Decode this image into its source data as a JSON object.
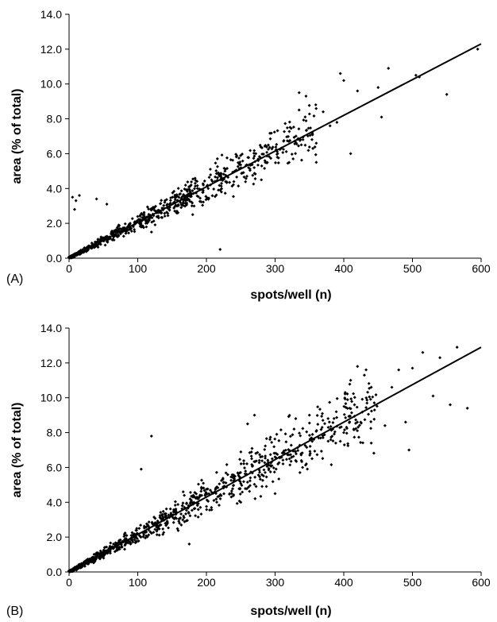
{
  "chart_data": [
    {
      "panel_label": "(A)",
      "type": "scatter",
      "xlabel": "spots/well (n)",
      "ylabel": "area (% of total)",
      "xlim": [
        0,
        600
      ],
      "ylim": [
        0,
        14
      ],
      "xticks": [
        "0",
        "100",
        "200",
        "300",
        "400",
        "500",
        "600"
      ],
      "yticks": [
        "0.0",
        "2.0",
        "4.0",
        "6.0",
        "8.0",
        "10.0",
        "12.0",
        "14.0"
      ],
      "grid": false,
      "trendline": {
        "x": [
          0,
          600
        ],
        "y": [
          0,
          12.3
        ]
      },
      "outliers": [
        {
          "x": 5,
          "y": 3.5
        },
        {
          "x": 10,
          "y": 3.3
        },
        {
          "x": 15,
          "y": 3.6
        },
        {
          "x": 8,
          "y": 2.8
        },
        {
          "x": 40,
          "y": 3.4
        },
        {
          "x": 55,
          "y": 3.1
        },
        {
          "x": 220,
          "y": 0.5
        },
        {
          "x": 410,
          "y": 6.0
        },
        {
          "x": 550,
          "y": 9.4
        },
        {
          "x": 595,
          "y": 12.0
        },
        {
          "x": 465,
          "y": 10.9
        },
        {
          "x": 505,
          "y": 10.5
        },
        {
          "x": 510,
          "y": 10.4
        },
        {
          "x": 395,
          "y": 10.6
        },
        {
          "x": 400,
          "y": 10.2
        },
        {
          "x": 335,
          "y": 9.5
        },
        {
          "x": 345,
          "y": 9.3
        },
        {
          "x": 420,
          "y": 9.6
        },
        {
          "x": 450,
          "y": 9.8
        },
        {
          "x": 455,
          "y": 8.1
        },
        {
          "x": 380,
          "y": 7.6
        },
        {
          "x": 390,
          "y": 7.8
        },
        {
          "x": 370,
          "y": 8.4
        },
        {
          "x": 355,
          "y": 6.3
        },
        {
          "x": 360,
          "y": 5.5
        },
        {
          "x": 280,
          "y": 4.5
        },
        {
          "x": 120,
          "y": 1.5
        },
        {
          "x": 180,
          "y": 2.5
        }
      ],
      "cluster": {
        "n": 850,
        "x_range": [
          0,
          360
        ],
        "spread": 0.13,
        "seed": 11
      }
    },
    {
      "panel_label": "(B)",
      "type": "scatter",
      "xlabel": "spots/well (n)",
      "ylabel": "area (% of total)",
      "xlim": [
        0,
        600
      ],
      "ylim": [
        0,
        14
      ],
      "xticks": [
        "0",
        "100",
        "200",
        "300",
        "400",
        "500",
        "600"
      ],
      "yticks": [
        "0.0",
        "2.0",
        "4.0",
        "6.0",
        "8.0",
        "10.0",
        "12.0",
        "14.0"
      ],
      "grid": false,
      "trendline": {
        "x": [
          0,
          600
        ],
        "y": [
          0,
          12.9
        ]
      },
      "outliers": [
        {
          "x": 120,
          "y": 7.8
        },
        {
          "x": 105,
          "y": 5.9
        },
        {
          "x": 175,
          "y": 1.6
        },
        {
          "x": 565,
          "y": 12.9
        },
        {
          "x": 515,
          "y": 12.6
        },
        {
          "x": 580,
          "y": 9.4
        },
        {
          "x": 555,
          "y": 9.6
        },
        {
          "x": 495,
          "y": 7.0
        },
        {
          "x": 490,
          "y": 8.6
        },
        {
          "x": 540,
          "y": 12.3
        },
        {
          "x": 530,
          "y": 10.1
        },
        {
          "x": 500,
          "y": 11.7
        },
        {
          "x": 480,
          "y": 11.6
        },
        {
          "x": 470,
          "y": 10.6
        },
        {
          "x": 440,
          "y": 7.4
        },
        {
          "x": 460,
          "y": 8.4
        },
        {
          "x": 420,
          "y": 11.8
        },
        {
          "x": 430,
          "y": 11.3
        },
        {
          "x": 410,
          "y": 11.0
        },
        {
          "x": 395,
          "y": 7.5
        },
        {
          "x": 400,
          "y": 8.0
        },
        {
          "x": 350,
          "y": 9.0
        },
        {
          "x": 340,
          "y": 6.0
        },
        {
          "x": 330,
          "y": 8.8
        },
        {
          "x": 270,
          "y": 9.0
        },
        {
          "x": 260,
          "y": 8.5
        },
        {
          "x": 300,
          "y": 4.5
        },
        {
          "x": 250,
          "y": 4.0
        }
      ],
      "cluster": {
        "n": 950,
        "x_range": [
          0,
          450
        ],
        "spread": 0.14,
        "seed": 29
      }
    }
  ]
}
